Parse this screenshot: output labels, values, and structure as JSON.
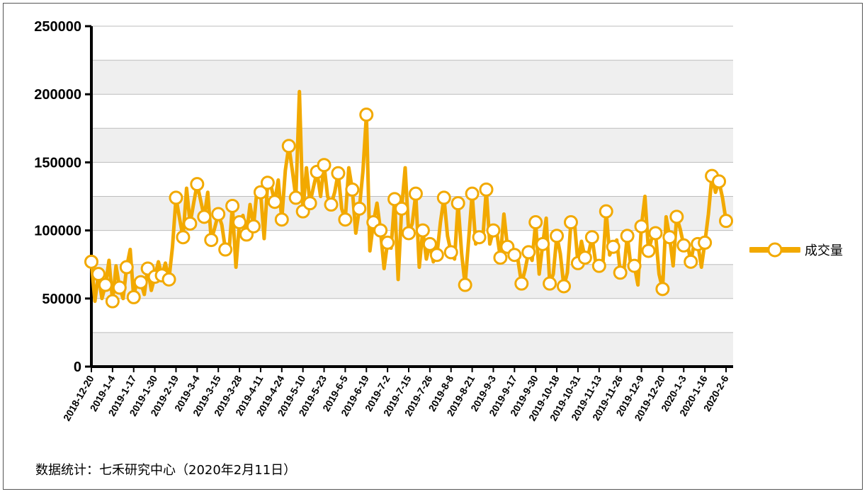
{
  "chart_data": {
    "type": "line",
    "title": "",
    "xlabel": "",
    "ylabel": "",
    "ylim": [
      0,
      250000
    ],
    "y_ticks": [
      0,
      50000,
      100000,
      150000,
      200000,
      250000
    ],
    "y_tick_labels": [
      "0",
      "50000",
      "100000",
      "150000",
      "200000",
      "250000"
    ],
    "x_tick_labels": [
      "2018-12-20",
      "2019-1-4",
      "2019-1-17",
      "2019-1-30",
      "2019-2-19",
      "2019-3-4",
      "2019-3-15",
      "2019-3-28",
      "2019-4-11",
      "2019-4-24",
      "2019-5-10",
      "2019-5-23",
      "2019-6-5",
      "2019-6-19",
      "2019-7-2",
      "2019-7-15",
      "2019-7-26",
      "2019-8-8",
      "2019-8-21",
      "2019-9-3",
      "2019-9-17",
      "2019-9-30",
      "2019-10-18",
      "2019-10-31",
      "2019-11-13",
      "2019-11-26",
      "2019-12-9",
      "2019-12-20",
      "2020-1-3",
      "2020-1-16",
      "2020-2-6"
    ],
    "grid": true,
    "grid_style": "alternating-bands",
    "legend_position": "right",
    "series": [
      {
        "name": "成交量",
        "color": "#f2a900",
        "marker": "circle",
        "values": [
          77000,
          48000,
          68000,
          50000,
          60000,
          78000,
          48000,
          74000,
          58000,
          50000,
          73000,
          86000,
          51000,
          64000,
          62000,
          53000,
          72000,
          56000,
          66000,
          77000,
          67000,
          76000,
          64000,
          88000,
          124000,
          109000,
          95000,
          131000,
          105000,
          120000,
          134000,
          122000,
          110000,
          128000,
          93000,
          102000,
          112000,
          104000,
          86000,
          83000,
          118000,
          73000,
          106000,
          111000,
          97000,
          119000,
          103000,
          131000,
          128000,
          94000,
          135000,
          132000,
          121000,
          137000,
          108000,
          144000,
          162000,
          144000,
          124000,
          202000,
          114000,
          146000,
          120000,
          132000,
          143000,
          125000,
          148000,
          125000,
          119000,
          128000,
          142000,
          116000,
          108000,
          146000,
          130000,
          98000,
          116000,
          143000,
          185000,
          85000,
          106000,
          120000,
          100000,
          72000,
          91000,
          87000,
          123000,
          64000,
          116000,
          146000,
          98000,
          105000,
          127000,
          73000,
          100000,
          79000,
          90000,
          77000,
          82000,
          106000,
          124000,
          96000,
          84000,
          79000,
          120000,
          83000,
          60000,
          93000,
          127000,
          90000,
          95000,
          93000,
          130000,
          90000,
          100000,
          98000,
          80000,
          112000,
          88000,
          89000,
          82000,
          78000,
          61000,
          71000,
          84000,
          78000,
          106000,
          68000,
          90000,
          109000,
          61000,
          68000,
          96000,
          83000,
          59000,
          69000,
          106000,
          106000,
          76000,
          92000,
          80000,
          83000,
          95000,
          77000,
          74000,
          73000,
          114000,
          82000,
          88000,
          93000,
          69000,
          70000,
          96000,
          74000,
          74000,
          60000,
          103000,
          125000,
          85000,
          95000,
          98000,
          68000,
          57000,
          110000,
          95000,
          74000,
          110000,
          101000,
          89000,
          91000,
          77000,
          91000,
          90000,
          73000,
          91000,
          112000,
          140000,
          128000,
          136000,
          124000,
          107000
        ]
      }
    ]
  },
  "source_note": "数据统计：七禾研究中心（2020年2月11日）"
}
